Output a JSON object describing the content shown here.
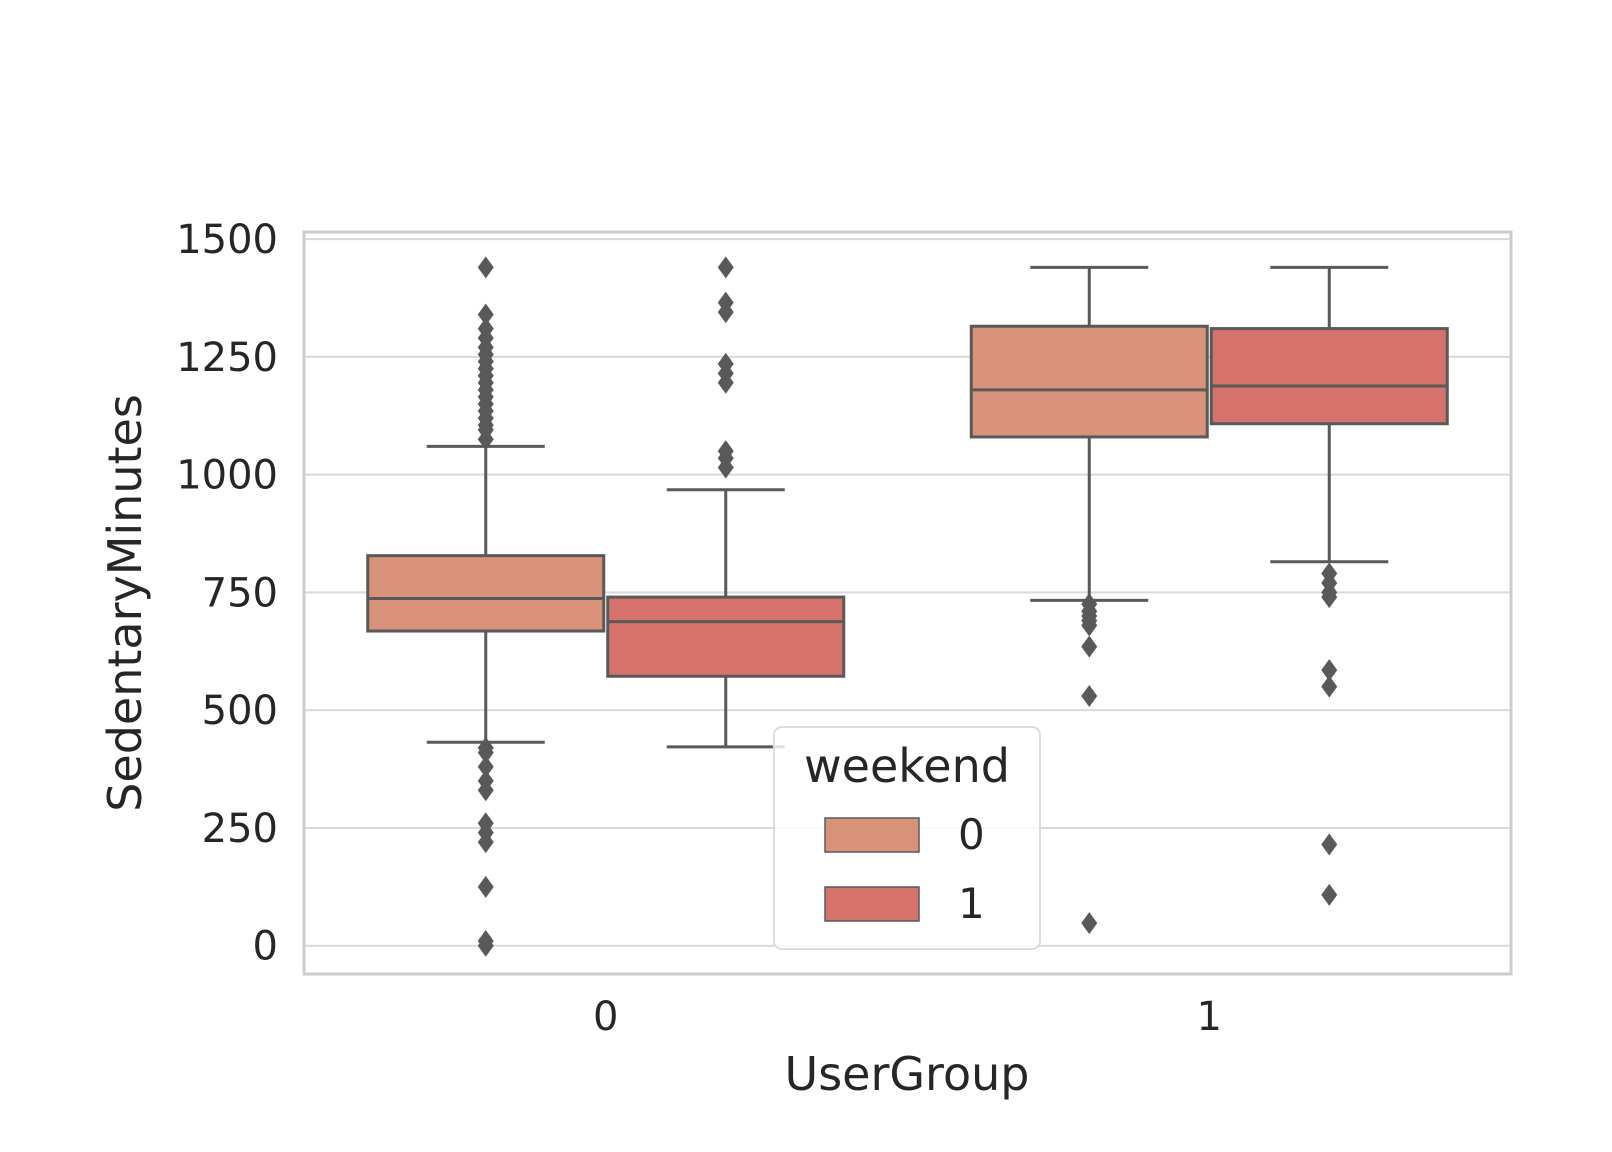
{
  "chart_data": {
    "type": "box",
    "xlabel": "UserGroup",
    "ylabel": "SedentaryMinutes",
    "categories": [
      "0",
      "1"
    ],
    "ylim": [
      -60,
      1515
    ],
    "yticks": [
      0,
      250,
      500,
      750,
      1000,
      1250,
      1500
    ],
    "grid": true,
    "legend": {
      "title": "weekend",
      "placement": "lower-center",
      "entries": [
        "0",
        "1"
      ]
    },
    "series": [
      {
        "name": "0",
        "color": "#d9927a",
        "boxes": [
          {
            "category": "0",
            "whislo": 432,
            "q1": 668,
            "med": 737,
            "q3": 828,
            "whishi": 1060,
            "fliers": [
              1440,
              1340,
              1310,
              1290,
              1270,
              1255,
              1240,
              1225,
              1210,
              1195,
              1180,
              1165,
              1150,
              1135,
              1120,
              1105,
              1095,
              1075,
              420,
              410,
              380,
              350,
              330,
              260,
              240,
              220,
              125,
              10,
              0
            ]
          },
          {
            "category": "1",
            "whislo": 733,
            "q1": 1080,
            "med": 1180,
            "q3": 1315,
            "whishi": 1440,
            "fliers": [
              725,
              710,
              700,
              690,
              680,
              635,
              530,
              48
            ]
          }
        ]
      },
      {
        "name": "1",
        "color": "#d4726b",
        "boxes": [
          {
            "category": "0",
            "whislo": 422,
            "q1": 572,
            "med": 688,
            "q3": 740,
            "whishi": 968,
            "fliers": [
              1440,
              1365,
              1345,
              1235,
              1215,
              1195,
              1050,
              1035,
              1015
            ]
          },
          {
            "category": "1",
            "whislo": 815,
            "q1": 1108,
            "med": 1188,
            "q3": 1310,
            "whishi": 1440,
            "fliers": [
              790,
              770,
              750,
              740,
              585,
              550,
              215,
              108
            ]
          }
        ]
      }
    ]
  }
}
